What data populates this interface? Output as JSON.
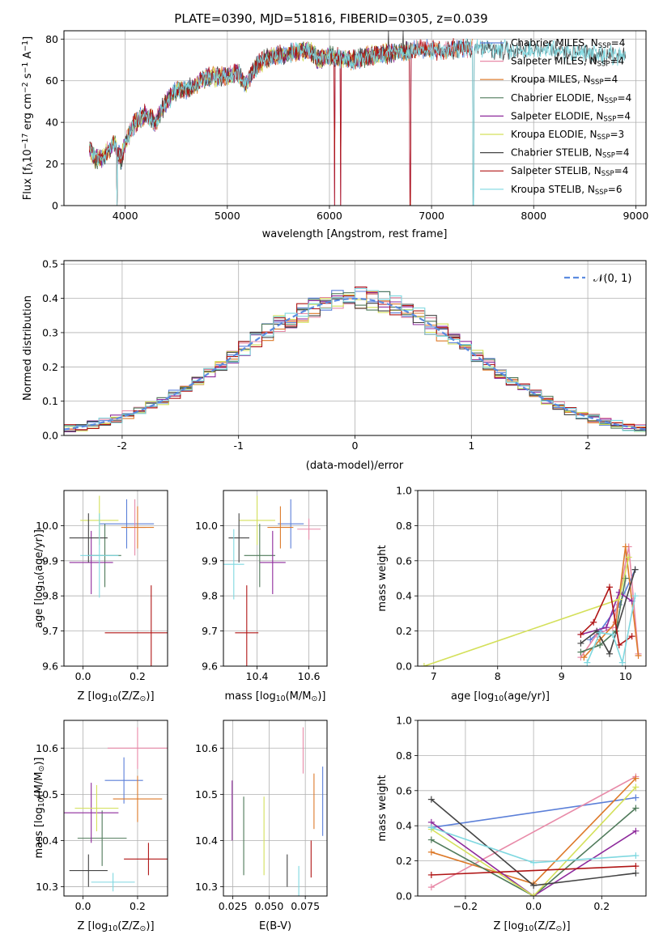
{
  "colors": {
    "Chabrier MILES": "#5b7fd8",
    "Salpeter MILES": "#e88aa8",
    "Kroupa MILES": "#dd7a2a",
    "Chabrier ELODIE": "#4f7a5a",
    "Salpeter ELODIE": "#8e2a9c",
    "Kroupa ELODIE": "#d4e05a",
    "Chabrier STELIB": "#444444",
    "Salpeter STELIB": "#b01515",
    "Kroupa STELIB": "#7fd8e0",
    "gauss": "#5b8be0",
    "grid": "#b0b0b0"
  },
  "chart_data": [
    {
      "type": "line",
      "title": "PLATE=0390, MJD=51816, FIBERID=0305, z=0.039",
      "xlabel": "wavelength [Angstrom, rest frame]",
      "ylabel_parts": [
        "Flux [f",
        "λ",
        "10",
        "−17",
        " erg cm",
        "−2",
        " s",
        "−1",
        " A",
        "−1",
        "]"
      ],
      "xlim": [
        3400,
        9100
      ],
      "ylim": [
        0,
        84
      ],
      "xticks": [
        4000,
        5000,
        6000,
        7000,
        8000,
        9000
      ],
      "yticks": [
        0,
        20,
        40,
        60,
        80
      ],
      "legend_position": "right",
      "legend": [
        {
          "base": "Chabrier MILES, N",
          "sub": "SSP",
          "tail": "=4",
          "series": "Chabrier MILES"
        },
        {
          "base": "Salpeter MILES, N",
          "sub": "SSP",
          "tail": "=4",
          "series": "Salpeter MILES"
        },
        {
          "base": "Kroupa MILES, N",
          "sub": "SSP",
          "tail": "=4",
          "series": "Kroupa MILES"
        },
        {
          "base": "Chabrier ELODIE, N",
          "sub": "SSP",
          "tail": "=4",
          "series": "Chabrier ELODIE"
        },
        {
          "base": "Salpeter ELODIE, N",
          "sub": "SSP",
          "tail": "=4",
          "series": "Salpeter ELODIE"
        },
        {
          "base": "Kroupa ELODIE, N",
          "sub": "SSP",
          "tail": "=3",
          "series": "Kroupa ELODIE"
        },
        {
          "base": "Chabrier STELIB, N",
          "sub": "SSP",
          "tail": "=4",
          "series": "Chabrier STELIB"
        },
        {
          "base": "Salpeter STELIB, N",
          "sub": "SSP",
          "tail": "=4",
          "series": "Salpeter STELIB"
        },
        {
          "base": "Kroupa STELIB, N",
          "sub": "SSP",
          "tail": "=6",
          "series": "Kroupa STELIB"
        }
      ],
      "spectrum_anchors": [
        [
          3650,
          28
        ],
        [
          3700,
          22
        ],
        [
          3800,
          24
        ],
        [
          3900,
          30
        ],
        [
          3960,
          22
        ],
        [
          4000,
          30
        ],
        [
          4100,
          40
        ],
        [
          4200,
          44
        ],
        [
          4300,
          40
        ],
        [
          4400,
          50
        ],
        [
          4500,
          55
        ],
        [
          4600,
          56
        ],
        [
          4700,
          58
        ],
        [
          4800,
          62
        ],
        [
          4900,
          62
        ],
        [
          5000,
          62
        ],
        [
          5100,
          64
        ],
        [
          5170,
          58
        ],
        [
          5300,
          68
        ],
        [
          5400,
          71
        ],
        [
          5500,
          72
        ],
        [
          5600,
          73
        ],
        [
          5700,
          74
        ],
        [
          5800,
          75
        ],
        [
          5890,
          70
        ],
        [
          6000,
          72
        ],
        [
          6200,
          70
        ],
        [
          6400,
          72
        ],
        [
          6560,
          73
        ],
        [
          6700,
          74
        ],
        [
          6900,
          75
        ],
        [
          7000,
          75
        ],
        [
          7100,
          74
        ],
        [
          7300,
          76
        ],
        [
          7500,
          76
        ],
        [
          7700,
          75
        ],
        [
          7900,
          75
        ],
        [
          8100,
          75
        ],
        [
          8300,
          74
        ],
        [
          8500,
          73
        ],
        [
          8700,
          72
        ],
        [
          8900,
          72
        ]
      ],
      "spectrum_ranges": {
        "Chabrier MILES": [
          3650,
          7400
        ],
        "Salpeter MILES": [
          3650,
          7400
        ],
        "Kroupa MILES": [
          3650,
          7400
        ],
        "Chabrier ELODIE": [
          3650,
          6800
        ],
        "Salpeter ELODIE": [
          3650,
          6800
        ],
        "Kroupa ELODIE": [
          3650,
          6800
        ],
        "Chabrier STELIB": [
          3650,
          8900
        ],
        "Salpeter STELIB": [
          3650,
          7400
        ],
        "Kroupa STELIB": [
          3650,
          8900
        ]
      },
      "spectrum_dropouts": [
        3920,
        6050,
        6110,
        6790,
        7410
      ],
      "spectrum_spikes": [
        [
          6580,
          84
        ],
        [
          6720,
          84
        ]
      ]
    },
    {
      "type": "line",
      "xlabel": "(data-model)/error",
      "ylabel": "Normed distribution",
      "xlim": [
        -2.5,
        2.5
      ],
      "ylim": [
        0,
        0.51
      ],
      "xticks": [
        -2,
        -1,
        0,
        1,
        2
      ],
      "yticks": [
        0.0,
        0.1,
        0.2,
        0.3,
        0.4,
        0.5
      ],
      "legend_position": "upper right",
      "gauss_label": "𝒩(0, 1)",
      "bin_width": 0.1,
      "series_note": "step histograms for the nine models, overlaid with a dashed standard normal curve"
    },
    {
      "type": "scatter",
      "xlabel_parts": [
        "Z [log",
        "10",
        "(Z/Z",
        "⊙",
        ")]"
      ],
      "ylabel_parts": [
        "age  [log",
        "10",
        "(age/yr)]"
      ],
      "xlim": [
        -0.07,
        0.31
      ],
      "ylim": [
        9.6,
        10.1
      ],
      "xticks": [
        0.0,
        0.2
      ],
      "yticks": [
        9.6,
        9.7,
        9.8,
        9.9,
        10.0
      ],
      "points": [
        {
          "series": "Chabrier MILES",
          "x": 0.16,
          "y": 10.005,
          "xerr": 0.1,
          "yerr": 0.07
        },
        {
          "series": "Salpeter MILES",
          "x": 0.19,
          "y": 9.995,
          "xerr": 0.04,
          "yerr": 0.08
        },
        {
          "series": "Kroupa MILES",
          "x": 0.2,
          "y": 9.995,
          "xerr": 0.06,
          "yerr": 0.06
        },
        {
          "series": "Chabrier ELODIE",
          "x": 0.08,
          "y": 9.915,
          "xerr": 0.06,
          "yerr": 0.09
        },
        {
          "series": "Salpeter ELODIE",
          "x": 0.03,
          "y": 9.895,
          "xerr": 0.08,
          "yerr": 0.09
        },
        {
          "series": "Kroupa ELODIE",
          "x": 0.06,
          "y": 10.015,
          "xerr": 0.07,
          "yerr": 0.07
        },
        {
          "series": "Chabrier STELIB",
          "x": 0.02,
          "y": 9.965,
          "xerr": 0.07,
          "yerr": 0.07
        },
        {
          "series": "Salpeter STELIB",
          "x": 0.25,
          "y": 9.695,
          "xerr": 0.17,
          "yerr": 0.135
        },
        {
          "series": "Kroupa STELIB",
          "x": 0.06,
          "y": 9.915,
          "xerr": 0.07,
          "yerr": 0.12
        }
      ]
    },
    {
      "type": "scatter",
      "xlabel_parts": [
        "mass [log",
        "10",
        "(M/M",
        "⊙",
        ")]"
      ],
      "ylabel": "",
      "xlim": [
        10.27,
        10.67
      ],
      "ylim": [
        9.6,
        10.1
      ],
      "xticks": [
        10.4,
        10.6
      ],
      "yticks": [
        9.6,
        9.7,
        9.8,
        9.9,
        10.0
      ],
      "points": [
        {
          "series": "Chabrier MILES",
          "x": 10.53,
          "y": 10.005,
          "xerr": 0.05,
          "yerr": 0.07
        },
        {
          "series": "Salpeter MILES",
          "x": 10.6,
          "y": 9.99,
          "xerr": 0.045,
          "yerr": 0.03
        },
        {
          "series": "Kroupa MILES",
          "x": 10.49,
          "y": 9.995,
          "xerr": 0.05,
          "yerr": 0.06
        },
        {
          "series": "Chabrier ELODIE",
          "x": 10.41,
          "y": 9.915,
          "xerr": 0.06,
          "yerr": 0.09
        },
        {
          "series": "Salpeter ELODIE",
          "x": 10.46,
          "y": 9.895,
          "xerr": 0.05,
          "yerr": 0.09
        },
        {
          "series": "Kroupa ELODIE",
          "x": 10.4,
          "y": 10.015,
          "xerr": 0.07,
          "yerr": 0.07
        },
        {
          "series": "Chabrier STELIB",
          "x": 10.33,
          "y": 9.965,
          "xerr": 0.04,
          "yerr": 0.07
        },
        {
          "series": "Salpeter STELIB",
          "x": 10.36,
          "y": 9.695,
          "xerr": 0.045,
          "yerr": 0.135
        },
        {
          "series": "Kroupa STELIB",
          "x": 10.31,
          "y": 9.89,
          "xerr": 0.04,
          "yerr": 0.1
        }
      ]
    },
    {
      "type": "line",
      "xlabel_parts": [
        "age  [log",
        "10",
        "(age/yr)]"
      ],
      "ylabel": "mass weight",
      "xlim": [
        6.75,
        10.32
      ],
      "ylim": [
        0,
        1
      ],
      "xticks": [
        7,
        8,
        9,
        10
      ],
      "yticks": [
        0.0,
        0.2,
        0.4,
        0.6,
        0.8,
        1.0
      ],
      "series": [
        {
          "name": "Chabrier MILES",
          "x": [
            9.45,
            9.6,
            9.9,
            10.15
          ],
          "y": [
            0.15,
            0.2,
            0.35,
            0.55
          ]
        },
        {
          "name": "Salpeter MILES",
          "x": [
            9.3,
            9.55,
            9.8,
            10.05,
            10.2
          ],
          "y": [
            0.05,
            0.18,
            0.22,
            0.68,
            0.07
          ]
        },
        {
          "name": "Kroupa MILES",
          "x": [
            9.35,
            9.6,
            9.85,
            10.0,
            10.2
          ],
          "y": [
            0.05,
            0.15,
            0.25,
            0.68,
            0.06
          ]
        },
        {
          "name": "Chabrier ELODIE",
          "x": [
            9.3,
            9.6,
            9.85,
            10.0
          ],
          "y": [
            0.08,
            0.12,
            0.2,
            0.5
          ]
        },
        {
          "name": "Salpeter ELODIE",
          "x": [
            9.3,
            9.7,
            9.9,
            10.1
          ],
          "y": [
            0.18,
            0.22,
            0.42,
            0.37
          ]
        },
        {
          "name": "Kroupa ELODIE",
          "x": [
            6.85,
            9.9,
            10.05
          ],
          "y": [
            0.0,
            0.38,
            0.62
          ]
        },
        {
          "name": "Chabrier STELIB",
          "x": [
            9.3,
            9.55,
            9.75,
            10.15
          ],
          "y": [
            0.13,
            0.2,
            0.07,
            0.55
          ]
        },
        {
          "name": "Salpeter STELIB",
          "x": [
            9.3,
            9.5,
            9.75,
            9.9,
            10.1
          ],
          "y": [
            0.18,
            0.25,
            0.45,
            0.12,
            0.17
          ]
        },
        {
          "name": "Kroupa STELIB",
          "x": [
            9.4,
            9.6,
            9.8,
            9.95,
            10.15
          ],
          "y": [
            0.02,
            0.19,
            0.18,
            0.02,
            0.4
          ]
        }
      ]
    },
    {
      "type": "scatter",
      "xlabel_parts": [
        "Z [log",
        "10",
        "(Z/Z",
        "⊙",
        ")]"
      ],
      "ylabel_parts": [
        "mass [log",
        "10",
        "(M/M",
        "⊙",
        ")]"
      ],
      "xlim": [
        -0.07,
        0.31
      ],
      "ylim": [
        10.28,
        10.66
      ],
      "xticks": [
        0.0,
        0.2
      ],
      "yticks": [
        10.3,
        10.4,
        10.5,
        10.6
      ],
      "points": [
        {
          "series": "Chabrier MILES",
          "x": 0.15,
          "y": 10.53,
          "xerr": 0.07,
          "yerr": 0.05
        },
        {
          "series": "Salpeter MILES",
          "x": 0.2,
          "y": 10.6,
          "xerr": 0.11,
          "yerr": 0.045
        },
        {
          "series": "Kroupa MILES",
          "x": 0.2,
          "y": 10.49,
          "xerr": 0.09,
          "yerr": 0.05
        },
        {
          "series": "Chabrier ELODIE",
          "x": 0.07,
          "y": 10.405,
          "xerr": 0.09,
          "yerr": 0.06
        },
        {
          "series": "Salpeter ELODIE",
          "x": 0.03,
          "y": 10.46,
          "xerr": 0.1,
          "yerr": 0.065
        },
        {
          "series": "Kroupa ELODIE",
          "x": 0.05,
          "y": 10.47,
          "xerr": 0.08,
          "yerr": 0.05
        },
        {
          "series": "Chabrier STELIB",
          "x": 0.02,
          "y": 10.335,
          "xerr": 0.07,
          "yerr": 0.035
        },
        {
          "series": "Salpeter STELIB",
          "x": 0.24,
          "y": 10.36,
          "xerr": 0.09,
          "yerr": 0.035
        },
        {
          "series": "Kroupa STELIB",
          "x": 0.11,
          "y": 10.31,
          "xerr": 0.08,
          "yerr": 0.02
        }
      ]
    },
    {
      "type": "scatter",
      "xlabel": "E(B-V)",
      "ylabel": "",
      "xlim": [
        0.0185,
        0.09
      ],
      "ylim": [
        10.28,
        10.66
      ],
      "xticks": [
        0.025,
        0.05,
        0.075
      ],
      "xtick_labels": [
        "0.025",
        "0.050",
        "0.075"
      ],
      "yticks": [
        10.3,
        10.4,
        10.5,
        10.6
      ],
      "points": [
        {
          "series": "Chabrier MILES",
          "x": 0.087,
          "y": 10.485,
          "yerr": 0.075
        },
        {
          "series": "Salpeter MILES",
          "x": 0.0735,
          "y": 10.595,
          "yerr": 0.05
        },
        {
          "series": "Kroupa MILES",
          "x": 0.081,
          "y": 10.485,
          "yerr": 0.06
        },
        {
          "series": "Chabrier ELODIE",
          "x": 0.0325,
          "y": 10.41,
          "yerr": 0.085
        },
        {
          "series": "Salpeter ELODIE",
          "x": 0.0245,
          "y": 10.465,
          "yerr": 0.065
        },
        {
          "series": "Kroupa ELODIE",
          "x": 0.0465,
          "y": 10.41,
          "yerr": 0.085
        },
        {
          "series": "Chabrier STELIB",
          "x": 0.0625,
          "y": 10.335,
          "yerr": 0.035
        },
        {
          "series": "Salpeter STELIB",
          "x": 0.079,
          "y": 10.36,
          "yerr": 0.04
        },
        {
          "series": "Kroupa STELIB",
          "x": 0.0705,
          "y": 10.31,
          "yerr": 0.035
        }
      ]
    },
    {
      "type": "line",
      "xlabel_parts": [
        "Z [log",
        "10",
        "(Z/Z",
        "⊙",
        ")]"
      ],
      "ylabel": "mass weight",
      "xlim": [
        -0.34,
        0.33
      ],
      "ylim": [
        0,
        1
      ],
      "xticks": [
        -0.2,
        0.0,
        0.2
      ],
      "xtick_labels": [
        "−0.2",
        "0.0",
        "0.2"
      ],
      "yticks": [
        0.0,
        0.2,
        0.4,
        0.6,
        0.8,
        1.0
      ],
      "series": [
        {
          "name": "Chabrier MILES",
          "x": [
            -0.3,
            0.3
          ],
          "y": [
            0.39,
            0.56
          ]
        },
        {
          "name": "Salpeter MILES",
          "x": [
            -0.3,
            0.3
          ],
          "y": [
            0.05,
            0.68
          ]
        },
        {
          "name": "Kroupa MILES",
          "x": [
            -0.3,
            0.0,
            0.3
          ],
          "y": [
            0.25,
            0.07,
            0.67
          ]
        },
        {
          "name": "Chabrier ELODIE",
          "x": [
            -0.3,
            0.0,
            0.3
          ],
          "y": [
            0.32,
            0.0,
            0.5
          ]
        },
        {
          "name": "Salpeter ELODIE",
          "x": [
            -0.3,
            0.0,
            0.3
          ],
          "y": [
            0.42,
            0.0,
            0.37
          ]
        },
        {
          "name": "Kroupa ELODIE",
          "x": [
            -0.3,
            0.0,
            0.3
          ],
          "y": [
            0.38,
            0.0,
            0.62
          ]
        },
        {
          "name": "Chabrier STELIB",
          "x": [
            -0.3,
            0.0,
            0.3
          ],
          "y": [
            0.55,
            0.06,
            0.13
          ]
        },
        {
          "name": "Salpeter STELIB",
          "x": [
            -0.3,
            0.3
          ],
          "y": [
            0.12,
            0.17
          ]
        },
        {
          "name": "Kroupa STELIB",
          "x": [
            -0.3,
            0.0,
            0.3
          ],
          "y": [
            0.39,
            0.19,
            0.23
          ]
        }
      ]
    }
  ]
}
